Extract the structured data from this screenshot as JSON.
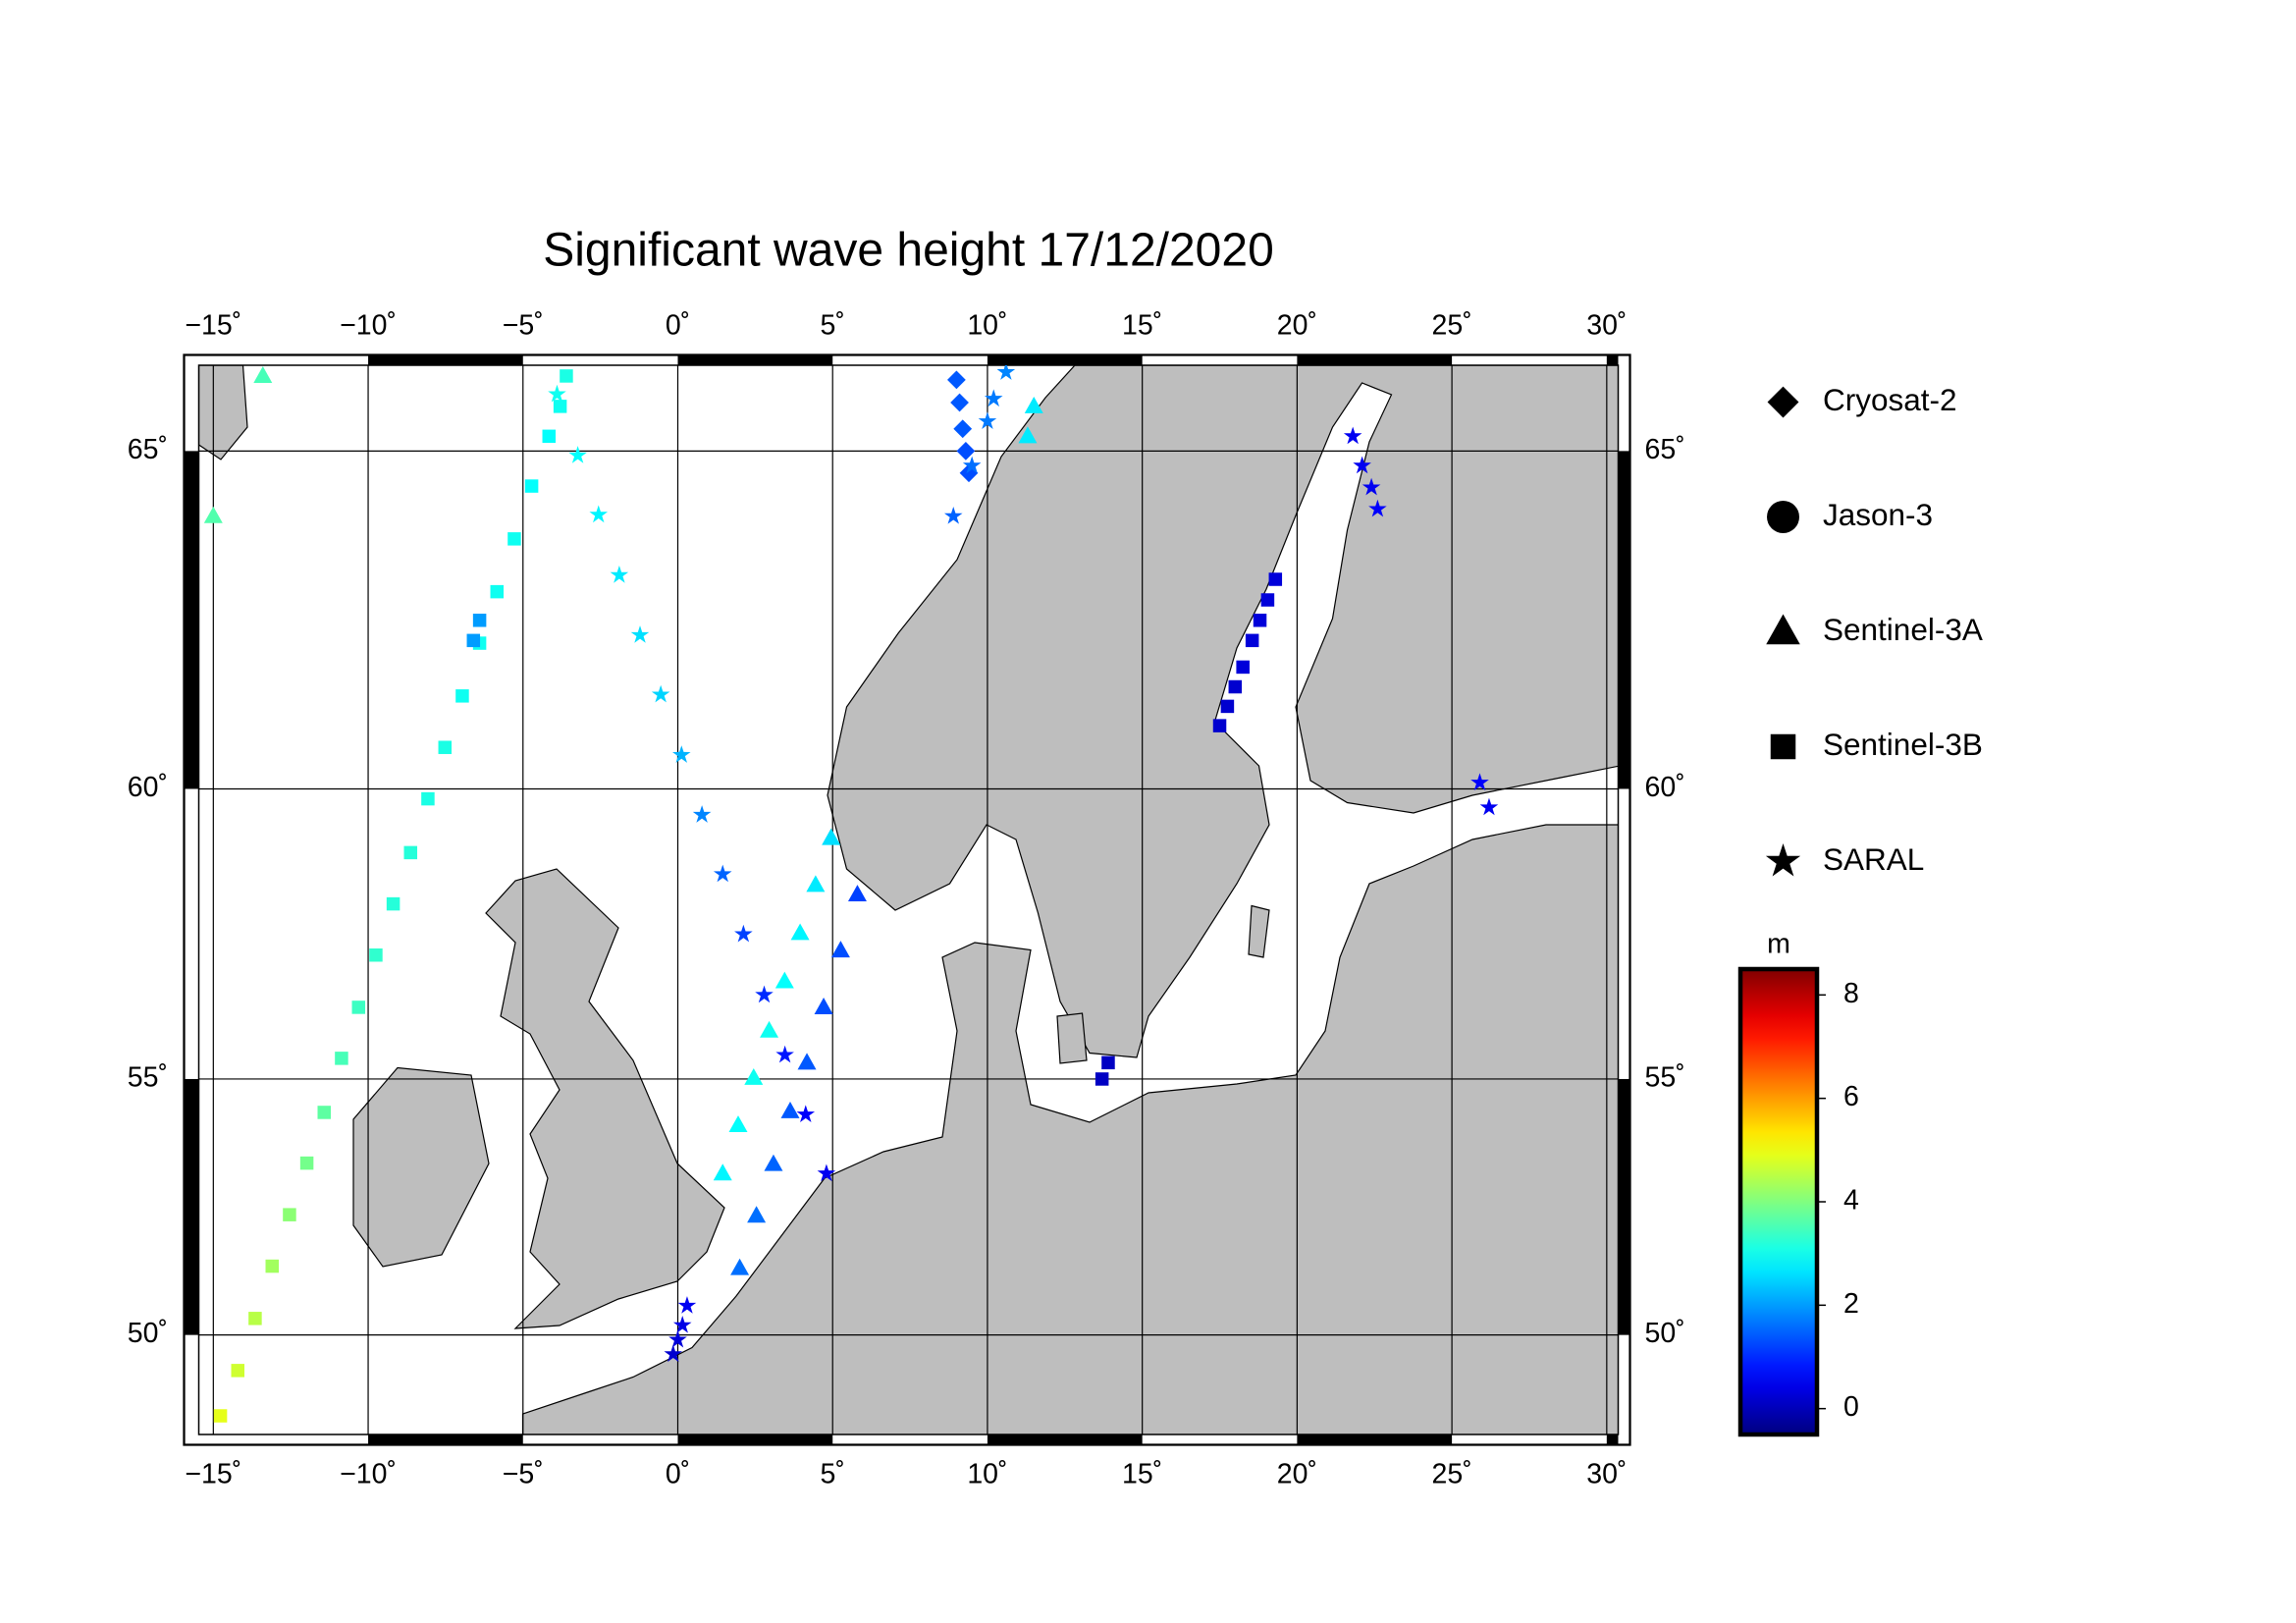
{
  "chart_data": {
    "type": "map",
    "title": "Significant wave height 17/12/2020",
    "xlim": [
      -15.47,
      30.37
    ],
    "ylim": [
      47.9,
      66.14
    ],
    "xticks": [
      {
        "value": -15,
        "label": "−15˚"
      },
      {
        "value": -10,
        "label": "−10˚"
      },
      {
        "value": -5,
        "label": "−5˚"
      },
      {
        "value": 0,
        "label": "0˚"
      },
      {
        "value": 5,
        "label": "5˚"
      },
      {
        "value": 10,
        "label": "10˚"
      },
      {
        "value": 15,
        "label": "15˚"
      },
      {
        "value": 20,
        "label": "20˚"
      },
      {
        "value": 25,
        "label": "25˚"
      },
      {
        "value": 30,
        "label": "30˚"
      }
    ],
    "yticks": [
      {
        "value": 50,
        "label": "50˚"
      },
      {
        "value": 55,
        "label": "55˚"
      },
      {
        "value": 60,
        "label": "60˚"
      },
      {
        "value": 65,
        "label": "65˚"
      }
    ],
    "grid": true,
    "colorbar": {
      "label": "m",
      "clim": [
        -0.5,
        8.5
      ],
      "ticks": [
        0,
        2,
        4,
        6,
        8
      ],
      "colormap": "jet"
    },
    "series": [
      {
        "name": "Cryosat-2",
        "marker": "diamond",
        "lon": [
          9.0,
          9.1,
          9.2,
          9.3,
          9.4
        ],
        "lat": [
          65.95,
          65.65,
          65.3,
          65.0,
          64.7
        ],
        "values": [
          1.4,
          1.4,
          1.4,
          1.3,
          1.3
        ]
      },
      {
        "name": "Jason-3",
        "marker": "circle",
        "lon": [],
        "lat": [],
        "values": []
      },
      {
        "name": "Sentinel-3A",
        "marker": "triangle",
        "lon": [
          -13.4,
          -15.0,
          11.5,
          11.3,
          1.45,
          1.95,
          2.45,
          2.95,
          3.45,
          3.95,
          4.45,
          4.95,
          2.0,
          2.54,
          3.09,
          3.63,
          4.17,
          4.71,
          5.26,
          5.8
        ],
        "lat": [
          66.0,
          64.1,
          65.6,
          65.2,
          53.22,
          54.14,
          55.02,
          55.88,
          56.76,
          57.6,
          58.42,
          59.2,
          51.36,
          52.4,
          53.4,
          54.4,
          55.3,
          56.3,
          57.3,
          58.26
        ],
        "values": [
          3.5,
          3.6,
          2.7,
          2.7,
          2.8,
          2.9,
          3.0,
          3.0,
          2.9,
          2.8,
          2.7,
          2.6,
          1.6,
          1.6,
          1.5,
          1.4,
          1.4,
          1.3,
          1.3,
          1.2
        ]
      },
      {
        "name": "Sentinel-3B",
        "marker": "square",
        "lon": [
          -14.77,
          -14.21,
          -13.65,
          -13.1,
          -12.54,
          -11.98,
          -11.42,
          -10.86,
          -10.31,
          -9.75,
          -9.19,
          -8.63,
          -8.07,
          -7.52,
          -6.96,
          -6.4,
          -5.84,
          -5.28,
          -4.72,
          -4.16,
          -6.6,
          -6.4,
          -3.6,
          -3.8,
          17.5,
          17.75,
          18.0,
          18.25,
          18.55,
          18.8,
          19.05,
          19.3,
          13.7,
          13.9
        ],
        "lat": [
          48.3,
          49.26,
          50.34,
          51.4,
          52.42,
          53.42,
          54.38,
          55.38,
          56.3,
          57.22,
          58.1,
          58.96,
          59.84,
          60.66,
          61.46,
          62.26,
          63.02,
          63.78,
          64.52,
          65.2,
          62.3,
          62.6,
          66.0,
          65.6,
          61.0,
          61.3,
          61.6,
          61.9,
          62.3,
          62.6,
          62.9,
          63.2,
          55.0,
          55.3
        ],
        "values": [
          4.9,
          4.7,
          4.5,
          4.3,
          4.1,
          3.9,
          3.7,
          3.5,
          3.4,
          3.3,
          3.2,
          3.2,
          3.1,
          3.1,
          3.0,
          3.0,
          3.0,
          3.0,
          2.9,
          2.9,
          2.0,
          2.0,
          3.1,
          3.0,
          0.2,
          0.2,
          0.2,
          0.3,
          0.3,
          0.3,
          0.3,
          0.3,
          0.1,
          0.1
        ]
      },
      {
        "name": "SARAL",
        "marker": "star",
        "lon": [
          -3.9,
          -3.23,
          -2.56,
          -1.89,
          -1.22,
          -0.55,
          0.12,
          0.78,
          1.45,
          2.12,
          2.79,
          3.46,
          4.13,
          4.8,
          -0.15,
          0.0,
          0.15,
          0.3,
          8.9,
          9.5,
          10.0,
          10.2,
          10.6,
          21.8,
          22.1,
          22.4,
          22.6,
          25.9,
          26.2
        ],
        "lat": [
          65.76,
          64.94,
          64.12,
          63.26,
          62.38,
          61.48,
          60.54,
          59.58,
          58.6,
          57.58,
          56.52,
          55.44,
          54.34,
          53.22,
          49.6,
          49.9,
          50.2,
          50.6,
          64.1,
          64.8,
          65.4,
          65.7,
          66.05,
          65.2,
          64.8,
          64.5,
          64.2,
          60.1,
          59.7
        ],
        "values": [
          3.0,
          2.9,
          2.8,
          2.7,
          2.6,
          2.5,
          2.2,
          1.8,
          1.5,
          1.2,
          1.0,
          0.8,
          0.6,
          0.5,
          0.2,
          0.3,
          0.4,
          0.5,
          1.5,
          1.6,
          1.7,
          1.7,
          1.8,
          0.5,
          0.5,
          0.5,
          0.6,
          0.6,
          0.5
        ]
      }
    ]
  }
}
